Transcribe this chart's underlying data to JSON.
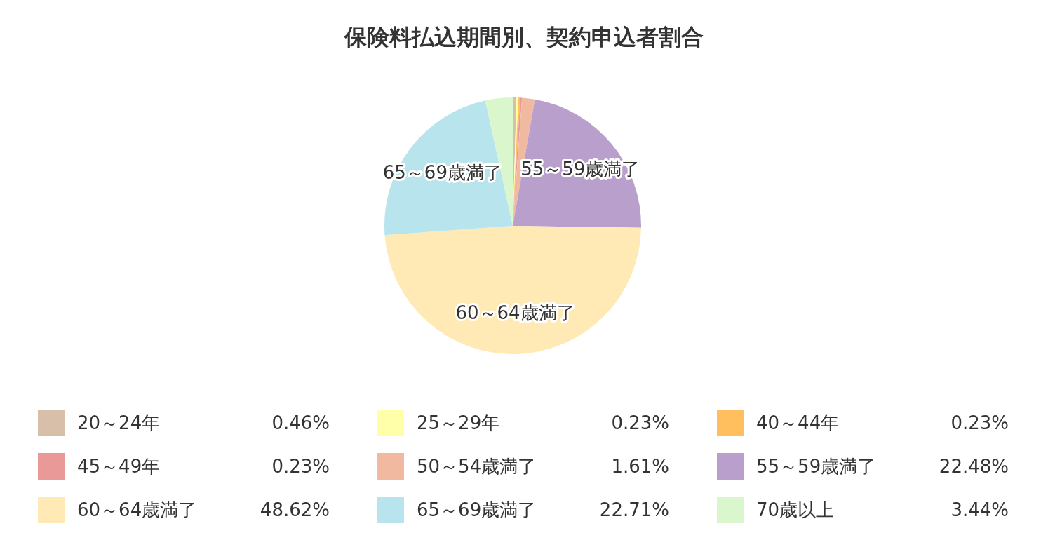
{
  "chart_data": {
    "type": "pie",
    "title": "保険料払込期間別、契約申込者割合",
    "categories": [
      "20～24年",
      "25～29年",
      "40～44年",
      "45～49年",
      "50～54歳満了",
      "55～59歳満了",
      "60～64歳満了",
      "65～69歳満了",
      "70歳以上"
    ],
    "values": [
      0.46,
      0.23,
      0.23,
      0.23,
      1.61,
      22.48,
      48.62,
      22.71,
      3.44
    ],
    "value_labels": [
      "0.46%",
      "0.23%",
      "0.23%",
      "0.23%",
      "1.61%",
      "22.48%",
      "48.62%",
      "22.71%",
      "3.44%"
    ],
    "colors": [
      "#d8bfaa",
      "#ffffaa",
      "#ffbf5f",
      "#ea9999",
      "#f0b9a0",
      "#b99fcc",
      "#ffe9b5",
      "#b8e4ee",
      "#d9f6cc"
    ],
    "annotations": [
      {
        "text": "55～59歳満了",
        "x": "55～59歳満了"
      },
      {
        "text": "60～64歳満了",
        "x": "60～64歳満了"
      },
      {
        "text": "65～69歳満了",
        "x": "65～69歳満了"
      }
    ],
    "legend": "bottom"
  }
}
